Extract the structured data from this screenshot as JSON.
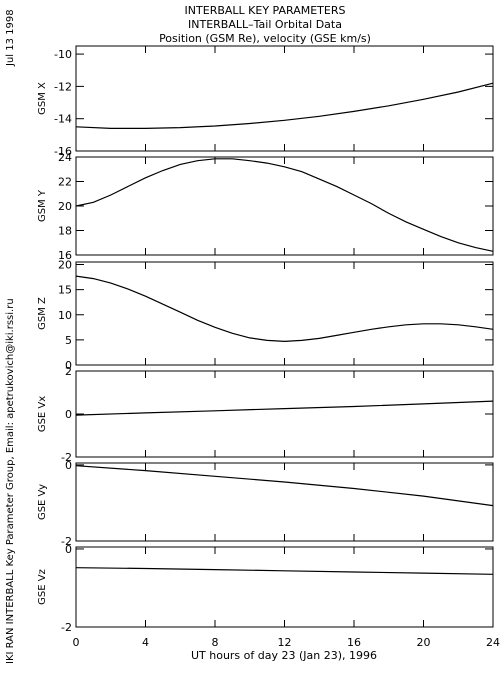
{
  "header": {
    "title": "INTERBALL KEY PARAMETERS",
    "subtitle": "INTERBALL–Tail Orbital Data",
    "line3": "Position (GSM Re), velocity (GSE km/s)"
  },
  "side": {
    "date": "Jul 13 1998",
    "credit": "IKI RAN INTERBALL Key Parameter Group, Email: apetrukovich@iki.rssi.ru"
  },
  "chart_data": {
    "type": "line",
    "xlabel": "UT hours of day  23 (Jan 23), 1996",
    "xlim": [
      0,
      24
    ],
    "xticks": [
      0,
      4,
      8,
      12,
      16,
      20,
      24
    ],
    "panels": [
      {
        "ylabel": "GSM X",
        "ylim": [
          -16,
          -9.5
        ],
        "yticks": [
          -16,
          -14,
          -12,
          -10
        ],
        "x": [
          0,
          2,
          4,
          6,
          8,
          10,
          12,
          14,
          16,
          18,
          20,
          22,
          24
        ],
        "values": [
          -14.5,
          -14.6,
          -14.6,
          -14.55,
          -14.45,
          -14.3,
          -14.1,
          -13.85,
          -13.55,
          -13.2,
          -12.8,
          -12.35,
          -11.8
        ]
      },
      {
        "ylabel": "GSM Y",
        "ylim": [
          16,
          24
        ],
        "yticks": [
          16,
          18,
          20,
          22,
          24
        ],
        "x": [
          0,
          1,
          2,
          3,
          4,
          5,
          6,
          7,
          8,
          9,
          10,
          11,
          12,
          13,
          14,
          15,
          16,
          17,
          18,
          19,
          20,
          21,
          22,
          23,
          24
        ],
        "values": [
          20.0,
          20.3,
          20.9,
          21.6,
          22.3,
          22.9,
          23.4,
          23.7,
          23.85,
          23.85,
          23.7,
          23.5,
          23.2,
          22.8,
          22.2,
          21.6,
          20.9,
          20.2,
          19.4,
          18.7,
          18.1,
          17.5,
          17.0,
          16.6,
          16.3
        ]
      },
      {
        "ylabel": "GSM Z",
        "ylim": [
          0,
          20.5
        ],
        "yticks": [
          0,
          5,
          10,
          15,
          20
        ],
        "x": [
          0,
          1,
          2,
          3,
          4,
          5,
          6,
          7,
          8,
          9,
          10,
          11,
          12,
          13,
          14,
          15,
          16,
          17,
          18,
          19,
          20,
          21,
          22,
          23,
          24
        ],
        "values": [
          17.7,
          17.2,
          16.3,
          15.1,
          13.7,
          12.1,
          10.5,
          8.9,
          7.5,
          6.3,
          5.4,
          4.9,
          4.7,
          4.9,
          5.3,
          5.9,
          6.5,
          7.1,
          7.6,
          8.0,
          8.2,
          8.2,
          8.0,
          7.6,
          7.1
        ]
      },
      {
        "ylabel": "GSE Vx",
        "ylim": [
          -2,
          2
        ],
        "yticks": [
          -2,
          0,
          2
        ],
        "x": [
          0,
          4,
          8,
          12,
          16,
          20,
          24
        ],
        "values": [
          -0.05,
          0.05,
          0.15,
          0.25,
          0.35,
          0.47,
          0.6
        ]
      },
      {
        "ylabel": "GSE Vy",
        "ylim": [
          -2,
          0.05
        ],
        "yticks": [
          -2,
          0
        ],
        "x": [
          0,
          4,
          8,
          12,
          16,
          20,
          24
        ],
        "values": [
          -0.02,
          -0.15,
          -0.3,
          -0.45,
          -0.62,
          -0.82,
          -1.07
        ]
      },
      {
        "ylabel": "GSE Vz",
        "ylim": [
          -2,
          0.05
        ],
        "yticks": [
          -2,
          0
        ],
        "x": [
          0,
          4,
          8,
          12,
          16,
          20,
          24
        ],
        "values": [
          -0.48,
          -0.5,
          -0.53,
          -0.56,
          -0.59,
          -0.62,
          -0.65
        ]
      }
    ]
  }
}
